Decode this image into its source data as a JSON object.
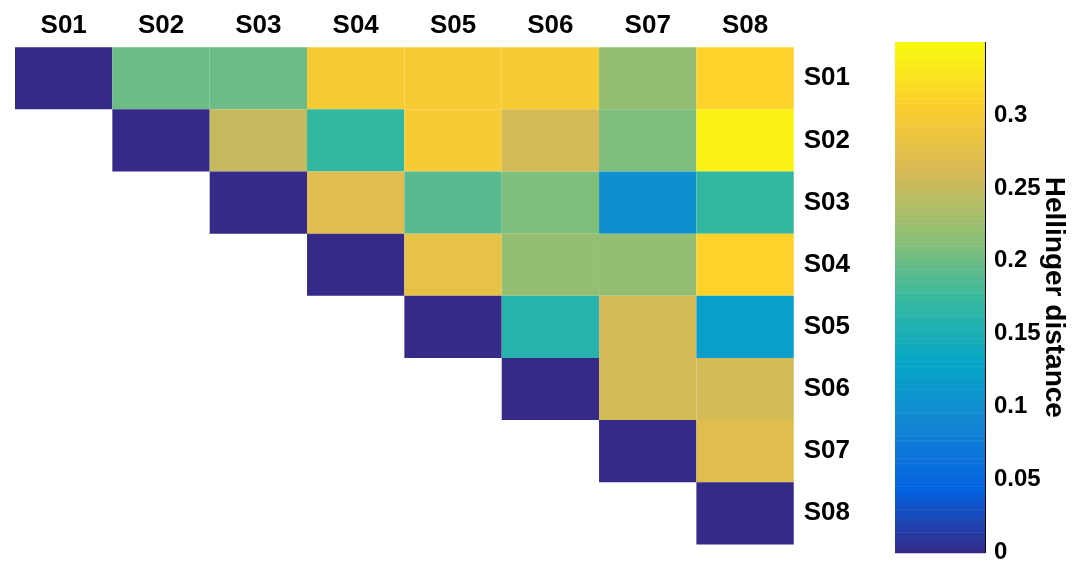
{
  "chart_data": {
    "type": "heatmap",
    "categories": [
      "S01",
      "S02",
      "S03",
      "S04",
      "S05",
      "S06",
      "S07",
      "S08"
    ],
    "y_categories": [
      "S01",
      "S02",
      "S03",
      "S04",
      "S05",
      "S06",
      "S07",
      "S08"
    ],
    "cells": [
      [
        0,
        0.2,
        0.2,
        0.3,
        0.3,
        0.3,
        0.22,
        0.31
      ],
      [
        null,
        0,
        0.25,
        0.17,
        0.3,
        0.26,
        0.21,
        0.34
      ],
      [
        null,
        null,
        0,
        0.27,
        0.19,
        0.21,
        0.1,
        0.17
      ],
      [
        null,
        null,
        null,
        0,
        0.28,
        0.22,
        0.22,
        0.31
      ],
      [
        null,
        null,
        null,
        null,
        0,
        0.16,
        0.26,
        0.12
      ],
      [
        null,
        null,
        null,
        null,
        null,
        0,
        0.26,
        0.26
      ],
      [
        null,
        null,
        null,
        null,
        null,
        null,
        0,
        0.27
      ],
      [
        null,
        null,
        null,
        null,
        null,
        null,
        null,
        0
      ]
    ],
    "clim": [
      0,
      0.35
    ],
    "cticks": [
      0,
      0.05,
      0.1,
      0.15,
      0.2,
      0.25,
      0.3
    ],
    "clabel": "Hellinger distance"
  }
}
